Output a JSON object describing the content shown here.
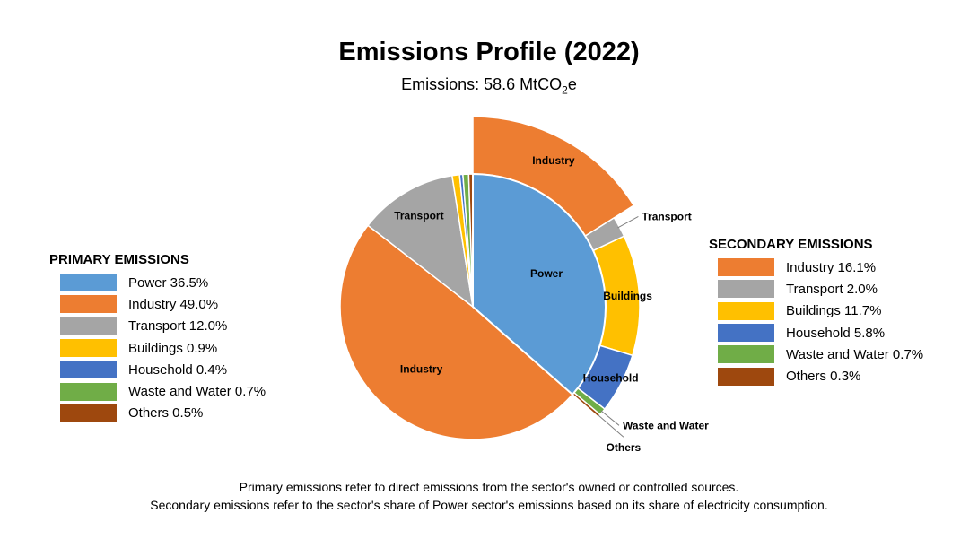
{
  "title": "Emissions Profile (2022)",
  "subtitle": {
    "prefix": "Emissions: 58.6 MtCO",
    "subscript": "2",
    "suffix": "e"
  },
  "primary_legend": {
    "title": "PRIMARY EMISSIONS",
    "items": [
      {
        "label": "Power 36.5%",
        "color": "#5b9bd5"
      },
      {
        "label": "Industry 49.0%",
        "color": "#ed7d31"
      },
      {
        "label": "Transport 12.0%",
        "color": "#a5a5a5"
      },
      {
        "label": "Buildings 0.9%",
        "color": "#ffc000"
      },
      {
        "label": "Household 0.4%",
        "color": "#4472c4"
      },
      {
        "label": "Waste and Water 0.7%",
        "color": "#70ad47"
      },
      {
        "label": "Others 0.5%",
        "color": "#9e480e"
      }
    ]
  },
  "secondary_legend": {
    "title": "SECONDARY EMISSIONS",
    "items": [
      {
        "label": "Industry 16.1%",
        "color": "#ed7d31"
      },
      {
        "label": "Transport 2.0%",
        "color": "#a5a5a5"
      },
      {
        "label": "Buildings 11.7%",
        "color": "#ffc000"
      },
      {
        "label": "Household 5.8%",
        "color": "#4472c4"
      },
      {
        "label": "Waste and Water 0.7%",
        "color": "#70ad47"
      },
      {
        "label": "Others 0.3%",
        "color": "#9e480e"
      }
    ]
  },
  "notes": [
    "Primary emissions refer to direct emissions from the sector's owned or controlled sources.",
    "Secondary emissions refer to the sector's share of Power sector's emissions based on its share of electricity consumption."
  ],
  "chart_data": {
    "type": "pie",
    "title": "Emissions Profile (2022)",
    "subtitle": "Emissions: 58.6 MtCO2e",
    "primary": [
      {
        "name": "Power",
        "value": 36.5,
        "color": "#5b9bd5",
        "label": "Power"
      },
      {
        "name": "Industry",
        "value": 49.0,
        "color": "#ed7d31",
        "label": "Industry"
      },
      {
        "name": "Transport",
        "value": 12.0,
        "color": "#a5a5a5",
        "label": "Transport"
      },
      {
        "name": "Buildings",
        "value": 0.9,
        "color": "#ffc000",
        "label": ""
      },
      {
        "name": "Household",
        "value": 0.4,
        "color": "#4472c4",
        "label": ""
      },
      {
        "name": "Waste and Water",
        "value": 0.7,
        "color": "#70ad47",
        "label": ""
      },
      {
        "name": "Others",
        "value": 0.5,
        "color": "#9e480e",
        "label": ""
      }
    ],
    "secondary": [
      {
        "name": "Industry",
        "value": 16.1,
        "color": "#ed7d31",
        "label": "Industry"
      },
      {
        "name": "Transport",
        "value": 2.0,
        "color": "#a5a5a5",
        "label": "Transport"
      },
      {
        "name": "Buildings",
        "value": 11.7,
        "color": "#ffc000",
        "label": "Buildings"
      },
      {
        "name": "Household",
        "value": 5.8,
        "color": "#4472c4",
        "label": "Household"
      },
      {
        "name": "Waste and Water",
        "value": 0.7,
        "color": "#70ad47",
        "label": "Waste and Water"
      },
      {
        "name": "Others",
        "value": 0.3,
        "color": "#9e480e",
        "label": "Others"
      }
    ]
  }
}
